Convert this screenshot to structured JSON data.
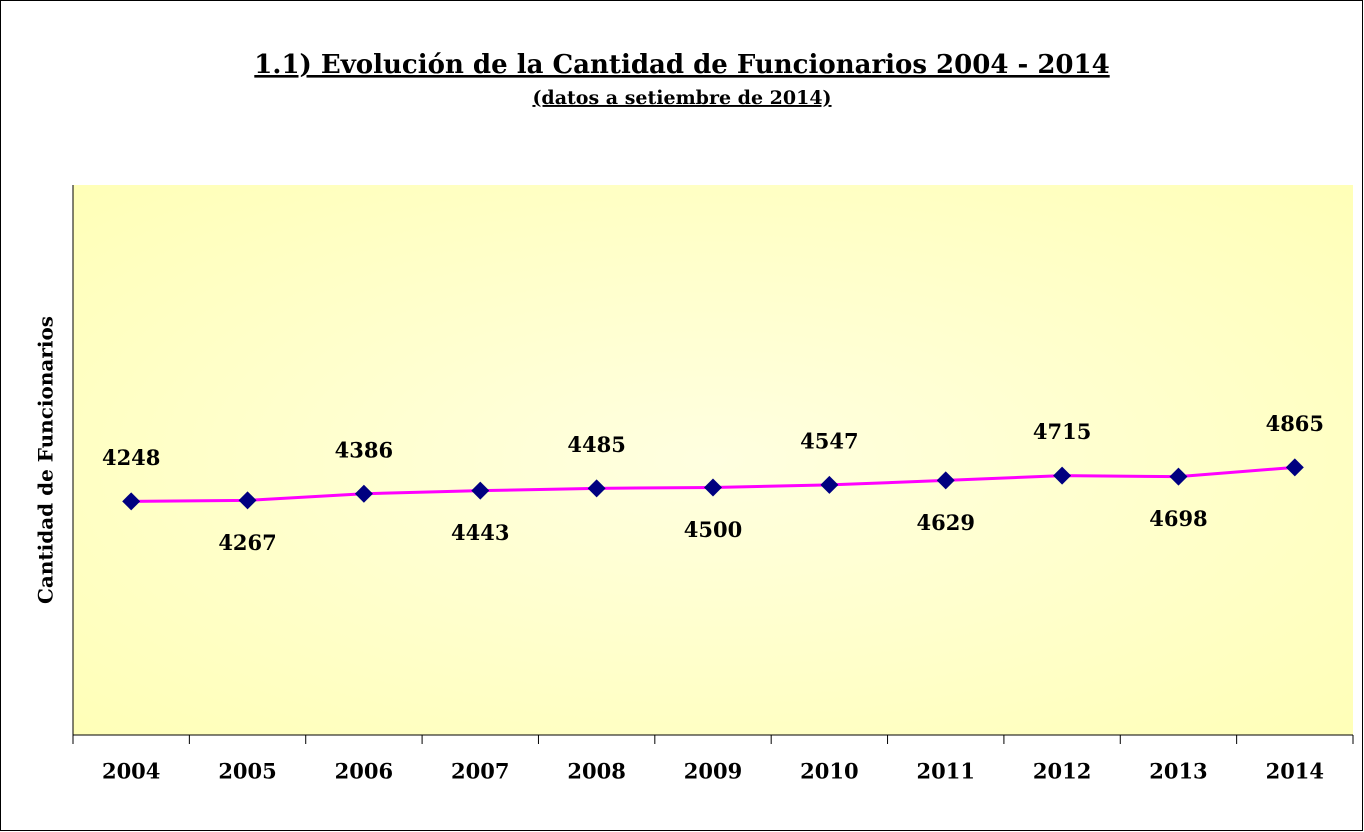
{
  "chart_data": {
    "type": "line",
    "title": "1.1) Evolución de la Cantidad de Funcionarios 2004 - 2014",
    "subtitle": "(datos a setiembre de 2014)",
    "y_label": "Cantidad de Funcionarios",
    "categories": [
      "2004",
      "2005",
      "2006",
      "2007",
      "2008",
      "2009",
      "2010",
      "2011",
      "2012",
      "2013",
      "2014"
    ],
    "series": [
      {
        "name": "Cantidad de Funcionarios",
        "color": "#ff00ff",
        "marker_color": "#000080",
        "values": [
          4248,
          4267,
          4386,
          4443,
          4485,
          4500,
          4547,
          4629,
          4715,
          4698,
          4865
        ]
      }
    ],
    "ylim": [
      0,
      10000
    ]
  }
}
